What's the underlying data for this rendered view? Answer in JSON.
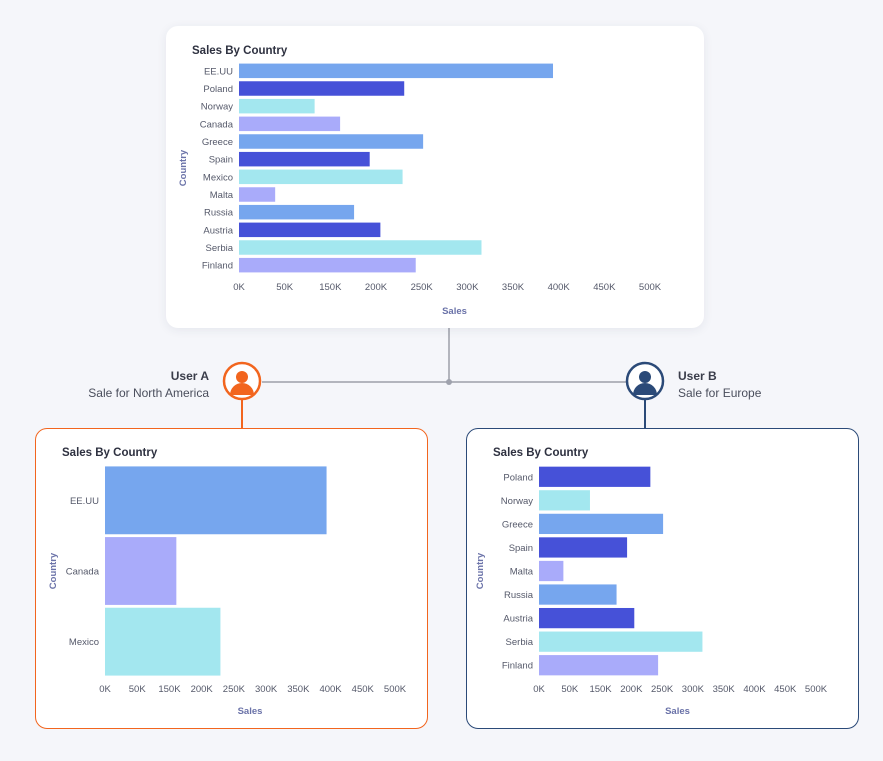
{
  "colors": {
    "light_blue": "#76a6ee",
    "indigo": "#4651d8",
    "cyan": "#a3e7ef",
    "lavender": "#a9abfa",
    "user_a_accent": "#f2651e",
    "user_b_accent": "#2b4a78",
    "connector": "#b3b5bd"
  },
  "users": {
    "a": {
      "name": "User A",
      "description": "Sale for North America",
      "icon": "user-icon"
    },
    "b": {
      "name": "User B",
      "description": "Sale for Europe",
      "icon": "user-icon"
    }
  },
  "chart_data": [
    {
      "id": "all",
      "type": "bar",
      "orientation": "horizontal",
      "title": "Sales By Country",
      "xlabel": "Sales",
      "ylabel": "Country",
      "xlim": [
        0,
        500000
      ],
      "x_ticks": [
        "0K",
        "50K",
        "150K",
        "200K",
        "250K",
        "300K",
        "350K",
        "400K",
        "450K",
        "500K"
      ],
      "categories": [
        "EE.UU",
        "Poland",
        "Norway",
        "Canada",
        "Greece",
        "Spain",
        "Mexico",
        "Malta",
        "Russia",
        "Austria",
        "Serbia",
        "Finland"
      ],
      "values": [
        382000,
        201000,
        92000,
        123000,
        224000,
        159000,
        199000,
        44000,
        140000,
        172000,
        295000,
        215000
      ],
      "bar_colors": [
        "light_blue",
        "indigo",
        "cyan",
        "lavender",
        "light_blue",
        "indigo",
        "cyan",
        "lavender",
        "light_blue",
        "indigo",
        "cyan",
        "lavender"
      ]
    },
    {
      "id": "user_a",
      "type": "bar",
      "orientation": "horizontal",
      "title": "Sales By Country",
      "xlabel": "Sales",
      "ylabel": "Country",
      "xlim": [
        0,
        500000
      ],
      "x_ticks": [
        "0K",
        "50K",
        "150K",
        "200K",
        "250K",
        "300K",
        "350K",
        "400K",
        "450K",
        "500K"
      ],
      "categories": [
        "EE.UU",
        "Canada",
        "Mexico"
      ],
      "values": [
        382000,
        123000,
        199000
      ],
      "bar_colors": [
        "light_blue",
        "lavender",
        "cyan"
      ]
    },
    {
      "id": "user_b",
      "type": "bar",
      "orientation": "horizontal",
      "title": "Sales By Country",
      "xlabel": "Sales",
      "ylabel": "Country",
      "xlim": [
        0,
        500000
      ],
      "x_ticks": [
        "0K",
        "50K",
        "150K",
        "200K",
        "250K",
        "300K",
        "350K",
        "400K",
        "450K",
        "500K"
      ],
      "categories": [
        "Poland",
        "Norway",
        "Greece",
        "Spain",
        "Malta",
        "Russia",
        "Austria",
        "Serbia",
        "Finland"
      ],
      "values": [
        201000,
        92000,
        224000,
        159000,
        44000,
        140000,
        172000,
        295000,
        215000
      ],
      "bar_colors": [
        "indigo",
        "cyan",
        "light_blue",
        "indigo",
        "lavender",
        "light_blue",
        "indigo",
        "cyan",
        "lavender"
      ]
    }
  ]
}
